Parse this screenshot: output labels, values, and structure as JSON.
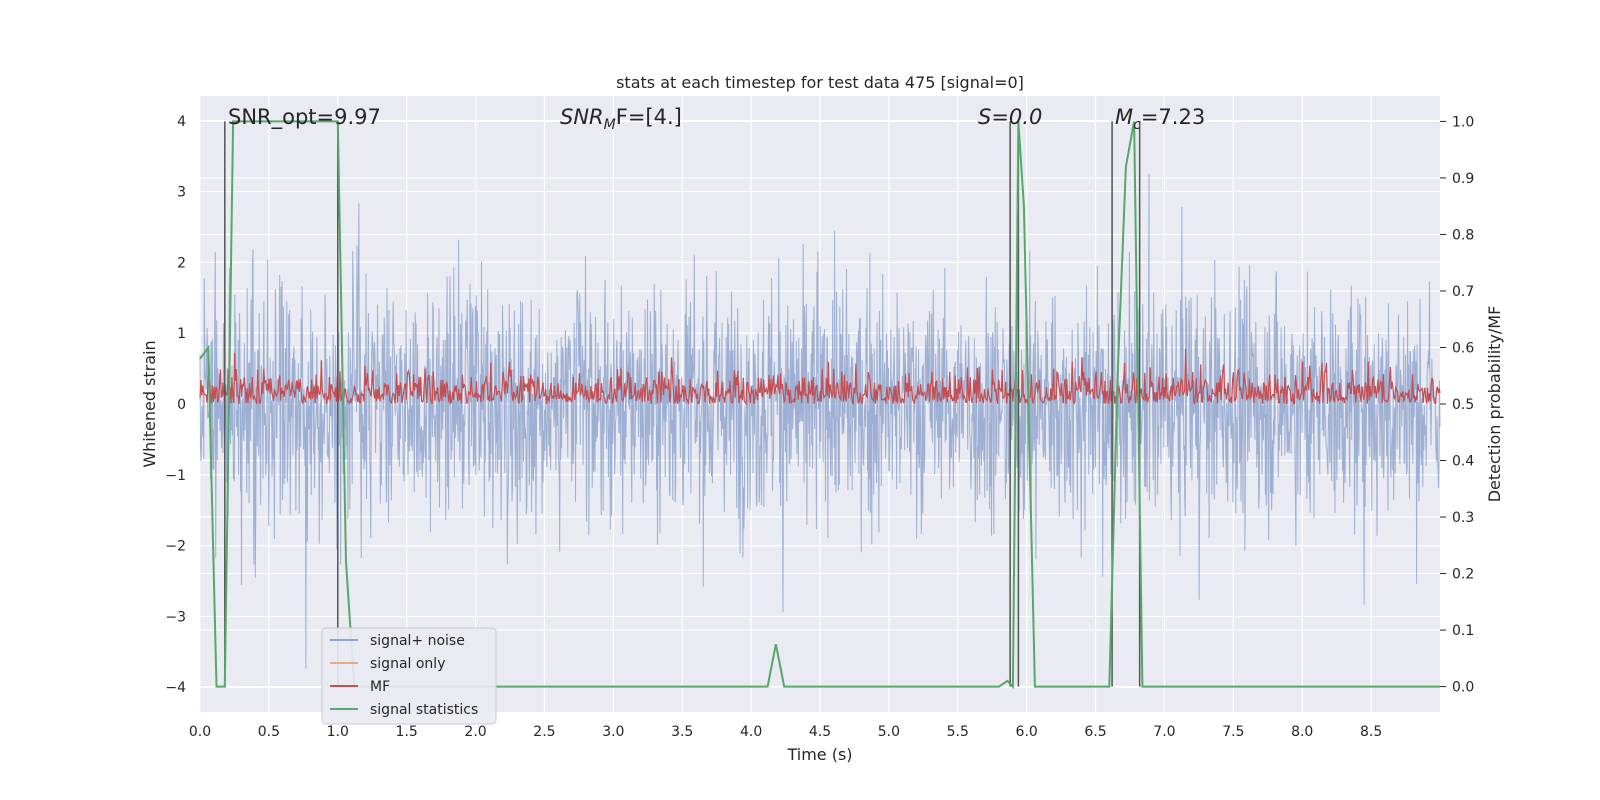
{
  "chart_data": {
    "type": "line",
    "title": "stats at each timestep for test data 475 [signal=0]",
    "xlabel": "Time (s)",
    "ylabel": "Whitened strain",
    "y2label": "Detection probability/MF",
    "xlim": [
      0.0,
      9.0
    ],
    "ylim": [
      -4.35,
      4.35
    ],
    "y2lim": [
      -0.045,
      1.045
    ],
    "grid": true,
    "legend_placement": "lower-left",
    "x_ticks": [
      "0.0",
      "0.5",
      "1.0",
      "1.5",
      "2.0",
      "2.5",
      "3.0",
      "3.5",
      "4.0",
      "4.5",
      "5.0",
      "5.5",
      "6.0",
      "6.5",
      "7.0",
      "7.5",
      "8.0",
      "8.5"
    ],
    "y_ticks": [
      "−4",
      "−3",
      "−2",
      "−1",
      "0",
      "1",
      "2",
      "3",
      "4"
    ],
    "y2_ticks": [
      "0.0",
      "0.1",
      "0.2",
      "0.3",
      "0.4",
      "0.5",
      "0.6",
      "0.7",
      "0.8",
      "0.9",
      "1.0"
    ],
    "annotations": {
      "snr_opt": "SNR_opt=9.97",
      "snr_mf_base": "SNR",
      "snr_mf_sub": "M",
      "snr_mf_rest": "F=[4.]",
      "s_stat": "S=0.0",
      "mc_base": "M",
      "mc_sub": "c",
      "mc_rest": "=7.23"
    },
    "vertical_markers_s": [
      0.18,
      1.0,
      5.88,
      5.94,
      6.62,
      6.82
    ],
    "series": [
      {
        "name": "signal+ noise",
        "color": "#8fa4cc",
        "axis": "left",
        "description_values": "noise envelope approx ±2.5, peaks up to ±4"
      },
      {
        "name": "signal only",
        "color": "#e8a989",
        "axis": "left",
        "values": []
      },
      {
        "name": "MF",
        "color": "#c44e52",
        "axis": "right",
        "range": [
          0.5,
          0.6
        ]
      },
      {
        "name": "signal statistics",
        "color": "#55a868",
        "axis": "right",
        "x": [
          0.0,
          0.06,
          0.12,
          0.18,
          0.24,
          0.3,
          0.7,
          0.76,
          0.82,
          0.88,
          0.94,
          1.0,
          1.06,
          1.12,
          1.18,
          1.4,
          4.0,
          4.12,
          4.18,
          4.24,
          4.3,
          5.8,
          5.86,
          5.9,
          5.94,
          5.98,
          6.06,
          6.12,
          6.6,
          6.66,
          6.72,
          6.78,
          6.84,
          6.9,
          6.96,
          9.0
        ],
        "y": [
          0.58,
          0.6,
          0.0,
          0.0,
          1.0,
          1.0,
          1.0,
          1.0,
          1.0,
          1.0,
          1.0,
          1.0,
          0.22,
          0.0,
          0.0,
          0.0,
          0.0,
          0.0,
          0.075,
          0.0,
          0.0,
          0.0,
          0.01,
          0.0,
          1.0,
          0.85,
          0.0,
          0.0,
          0.0,
          0.55,
          0.92,
          1.0,
          0.0,
          0.0,
          0.0,
          0.0
        ]
      }
    ]
  }
}
